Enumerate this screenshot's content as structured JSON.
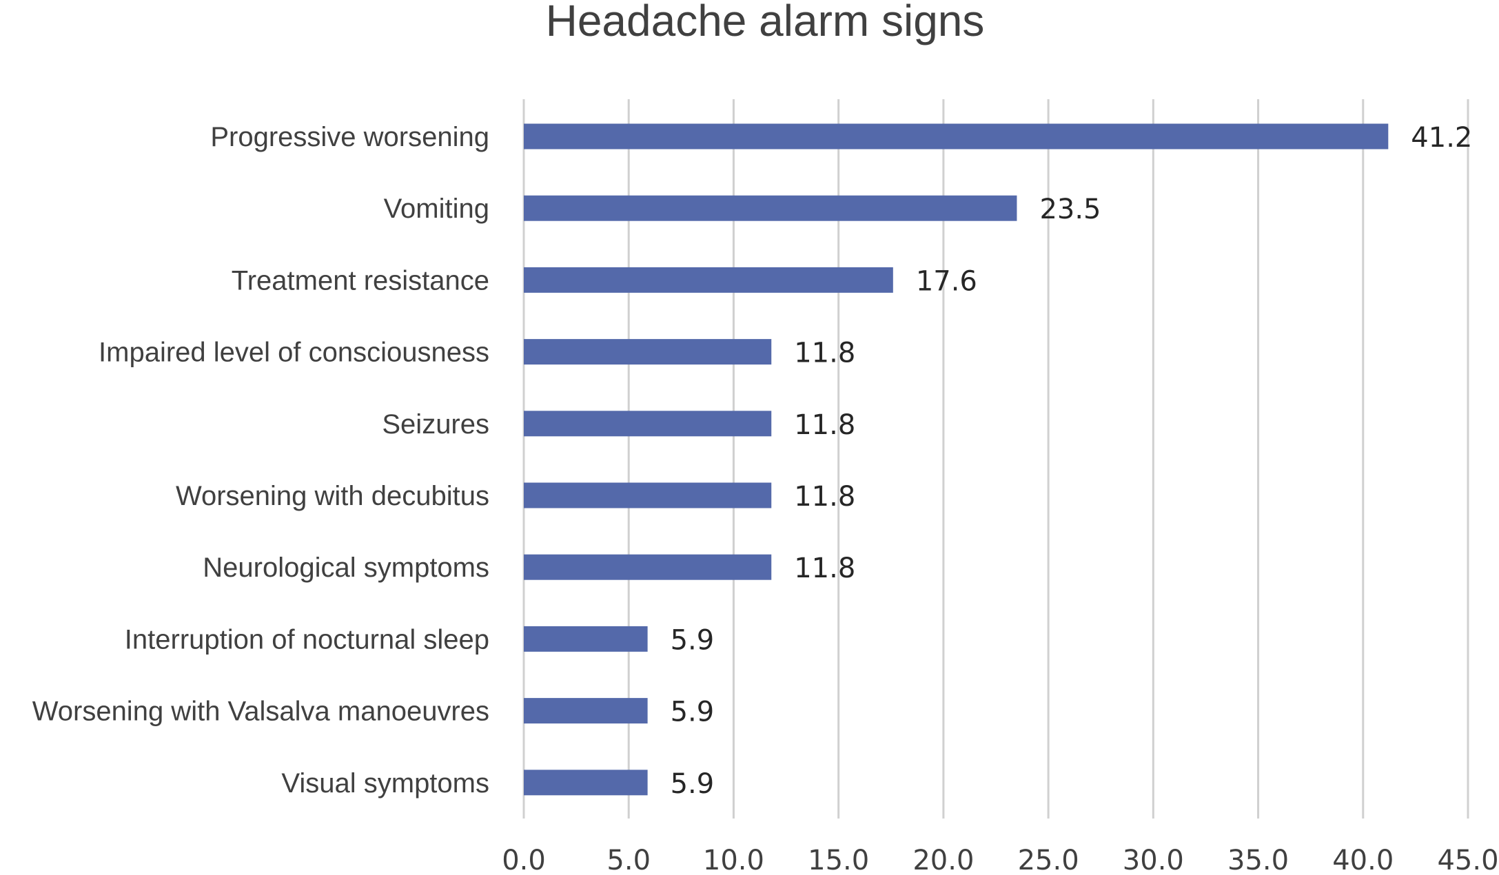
{
  "chart_data": {
    "type": "bar",
    "orientation": "horizontal",
    "title": "Headache alarm signs",
    "xlabel": "",
    "ylabel": "",
    "categories": [
      "Progressive worsening",
      "Vomiting",
      "Treatment resistance",
      "Impaired level of consciousness",
      "Seizures",
      "Worsening with decubitus",
      "Neurological symptoms",
      "Interruption of nocturnal sleep",
      "Worsening with Valsalva manoeuvres",
      "Visual symptoms"
    ],
    "values": [
      41.2,
      23.5,
      17.6,
      11.8,
      11.8,
      11.8,
      11.8,
      5.9,
      5.9,
      5.9
    ],
    "value_labels": [
      "41.2",
      "23.5",
      "17.6",
      "11.8",
      "11.8",
      "11.8",
      "11.8",
      "5.9",
      "5.9",
      "5.9"
    ],
    "xlim": [
      0,
      45
    ],
    "xticks": [
      0,
      5,
      10,
      15,
      20,
      25,
      30,
      35,
      40,
      45
    ],
    "xtick_labels": [
      "0.0",
      "5.0",
      "10.0",
      "15.0",
      "20.0",
      "25.0",
      "30.0",
      "35.0",
      "40.0",
      "45.0"
    ],
    "grid": "vertical",
    "legend": "none",
    "colors": {
      "bar": "#5469AA",
      "grid": "#D0D0D0",
      "text": "#404040",
      "data_label": "#262626"
    }
  }
}
